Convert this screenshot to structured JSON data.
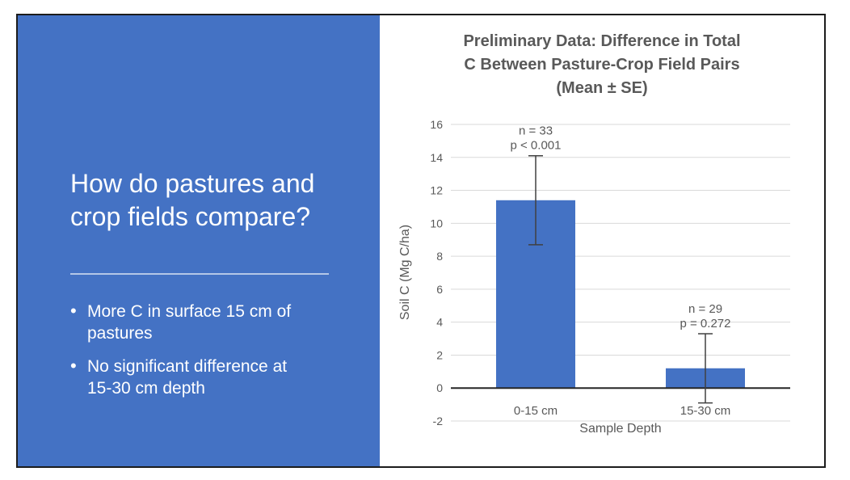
{
  "slide": {
    "left_panel": {
      "title": "How do pastures and crop fields compare?",
      "title_lines": [
        "How do pastures and",
        "crop fields compare?"
      ],
      "bullets": [
        {
          "text": "More C in surface 15 cm of pastures",
          "lines": [
            "More C in surface 15 cm of",
            "pastures"
          ]
        },
        {
          "text": "No significant difference at 15-30 cm depth",
          "lines": [
            "No significant difference at",
            "15-30 cm depth"
          ]
        }
      ],
      "background_color": "#4472C4",
      "text_color": "#FFFFFF",
      "divider_color": "#B4C7E7"
    },
    "border_color": "#1c1c1c"
  },
  "chart_data": {
    "type": "bar",
    "title": "Preliminary Data: Difference in Total C Between Pasture-Crop Field Pairs (Mean ± SE)",
    "title_lines": [
      "Preliminary Data: Difference in Total",
      "C Between Pasture-Crop Field Pairs",
      "(Mean ± SE)"
    ],
    "categories": [
      "0-15 cm",
      "15-30 cm"
    ],
    "values": [
      11.4,
      1.2
    ],
    "standard_errors": [
      2.7,
      2.1
    ],
    "annotations": [
      {
        "lines": [
          "n = 33",
          "p < 0.001"
        ]
      },
      {
        "lines": [
          "n = 29",
          "p = 0.272"
        ]
      }
    ],
    "xlabel": "Sample Depth",
    "ylabel": "Soil C (Mg C/ha)",
    "ylim": [
      -2,
      16
    ],
    "yticks": [
      16,
      14,
      12,
      10,
      8,
      6,
      4,
      2,
      0,
      -2
    ],
    "grid": true,
    "legend": false,
    "colors": {
      "bar": "#4472C4",
      "gridline": "#D9D9D9",
      "axis_line": "#262626",
      "error_bar": "#404040",
      "text": "#595959"
    }
  }
}
